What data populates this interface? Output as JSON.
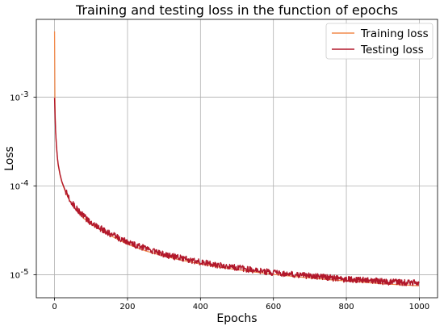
{
  "chart_data": {
    "type": "line",
    "title": "Training and testing loss in the function of epochs",
    "xlabel": "Epochs",
    "ylabel": "Loss",
    "xlim": [
      -50,
      1050
    ],
    "ylim": [
      5.5e-06,
      0.0075
    ],
    "yscale": "log",
    "grid": true,
    "legend_position": "top-right",
    "x_ticks": [
      0,
      200,
      400,
      600,
      800,
      1000
    ],
    "x_tick_labels": [
      "0",
      "200",
      "400",
      "600",
      "800",
      "1000"
    ],
    "y_ticks": [
      1e-05,
      0.0001,
      0.001
    ],
    "y_tick_labels": [
      "10",
      "10",
      "10"
    ],
    "y_tick_exponents": [
      "-5",
      "-4",
      "-3"
    ],
    "series": [
      {
        "name": "Training loss",
        "color": "#f28a4b",
        "x": [
          0,
          1,
          2,
          3,
          5,
          8,
          10,
          15,
          20,
          30,
          40,
          50,
          60,
          80,
          100,
          150,
          200,
          250,
          300,
          350,
          400,
          450,
          500,
          550,
          600,
          650,
          700,
          750,
          800,
          850,
          900,
          950,
          999
        ],
        "values": [
          0.0055,
          0.00095,
          0.00055,
          0.0004,
          0.00028,
          0.0002,
          0.00017,
          0.000132,
          0.00011,
          8.5e-05,
          7e-05,
          6e-05,
          5.3e-05,
          4.3e-05,
          3.7e-05,
          2.8e-05,
          2.2e-05,
          1.85e-05,
          1.62e-05,
          1.45e-05,
          1.32e-05,
          1.22e-05,
          1.14e-05,
          1.07e-05,
          1.01e-05,
          9.6e-06,
          9.2e-06,
          8.8e-06,
          8.5e-06,
          8.2e-06,
          7.9e-06,
          7.7e-06,
          7.5e-06
        ]
      },
      {
        "name": "Testing loss",
        "color": "#b2182b",
        "x": [
          0,
          1,
          2,
          3,
          5,
          8,
          10,
          15,
          20,
          30,
          40,
          50,
          60,
          80,
          100,
          150,
          200,
          250,
          300,
          350,
          400,
          450,
          500,
          550,
          600,
          650,
          700,
          750,
          800,
          850,
          900,
          950,
          999
        ],
        "values": [
          0.00098,
          0.0007,
          0.00052,
          0.0004,
          0.00029,
          0.000205,
          0.000175,
          0.000135,
          0.000112,
          8.7e-05,
          7.2e-05,
          6.2e-05,
          5.5e-05,
          4.5e-05,
          3.8e-05,
          2.9e-05,
          2.3e-05,
          1.95e-05,
          1.68e-05,
          1.51e-05,
          1.38e-05,
          1.27e-05,
          1.19e-05,
          1.11e-05,
          1.05e-05,
          1e-05,
          9.6e-06,
          9.2e-06,
          8.8e-06,
          8.6e-06,
          8.3e-06,
          8.1e-06,
          8e-06
        ]
      }
    ]
  }
}
